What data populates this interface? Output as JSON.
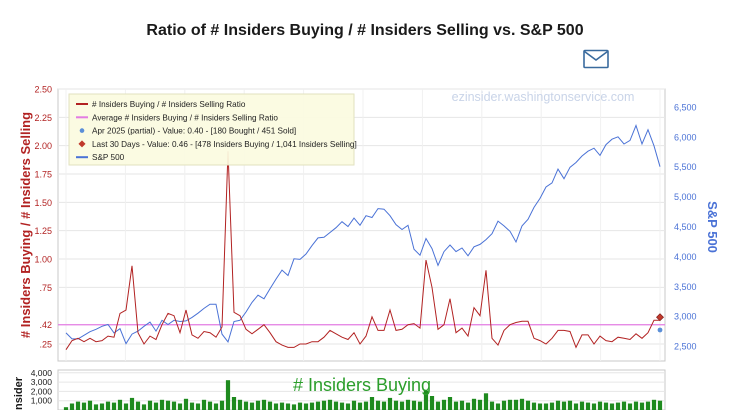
{
  "page": {
    "title": "Ratio of # Insiders Buying / # Insiders Selling vs. S&P 500"
  },
  "icons": {
    "mail": "envelope-icon"
  },
  "colors": {
    "ratio": "#b22222",
    "average": "#e37ce3",
    "sp500": "#4a72d6",
    "partial": "#5b8fd8",
    "last30": "#c0392b",
    "buying": "#1e8a1e",
    "grid": "#e6e6e6",
    "legend_bg": "#fbfbe0"
  },
  "chart_data": [
    {
      "type": "line",
      "title": "Ratio of # Insiders Buying / # Insiders Selling vs. S&P 500",
      "watermark": "ezinsider.washingtonservice.com",
      "ylabel": "# Insiders Buying / # Insiders Selling",
      "y2label": "S&P 500",
      "ylim": [
        0.1,
        2.5
      ],
      "y2lim": [
        2250,
        6800
      ],
      "yticks": [
        "2.50",
        "2.25",
        "2.00",
        "1.75",
        "1.50",
        "1.25",
        "1.00",
        ".75",
        ".42",
        ".25"
      ],
      "ytick_values": [
        2.5,
        2.25,
        2.0,
        1.75,
        1.5,
        1.25,
        1.0,
        0.75,
        0.42,
        0.25
      ],
      "y2ticks": [
        "6,500",
        "6,000",
        "5,500",
        "5,000",
        "4,500",
        "4,000",
        "3,500",
        "3,000",
        "2,500"
      ],
      "y2tick_values": [
        6500,
        6000,
        5500,
        5000,
        4500,
        4000,
        3500,
        3000,
        2500
      ],
      "legend": [
        {
          "label": "# Insiders Buying / # Insiders Selling Ratio",
          "kind": "line",
          "color": "#b22222"
        },
        {
          "label": "Average # Insiders Buying / # Insiders Selling Ratio",
          "kind": "line",
          "color": "#e37ce3"
        },
        {
          "label": "Apr 2025 (partial) - Value: 0.40 - [180 Bought / 451 Sold]",
          "kind": "dot",
          "color": "#5b8fd8"
        },
        {
          "label": "Last 30 Days - Value: 0.46 - [478 Insiders Buying / 1,041 Insiders Selling]",
          "kind": "diamond",
          "color": "#c0392b"
        },
        {
          "label": "S&P 500",
          "kind": "line",
          "color": "#4a72d6"
        }
      ],
      "average": 0.42,
      "partial_point": 0.4,
      "last30_point": 0.46,
      "series": [
        {
          "name": "# Insiders Buying / # Insiders Selling Ratio",
          "axis": "left",
          "values": [
            0.2,
            0.28,
            0.3,
            0.27,
            0.3,
            0.27,
            0.28,
            0.32,
            0.31,
            0.52,
            0.55,
            0.94,
            0.35,
            0.25,
            0.32,
            0.29,
            0.42,
            0.52,
            0.5,
            0.35,
            0.55,
            0.33,
            0.3,
            0.36,
            0.35,
            0.31,
            0.4,
            1.95,
            0.53,
            0.5,
            0.38,
            0.34,
            0.38,
            0.42,
            0.35,
            0.27,
            0.24,
            0.22,
            0.22,
            0.25,
            0.25,
            0.27,
            0.27,
            0.31,
            0.37,
            0.34,
            0.31,
            0.29,
            0.35,
            0.25,
            0.32,
            0.49,
            0.37,
            0.37,
            0.55,
            0.37,
            0.38,
            0.42,
            0.43,
            0.39,
            0.99,
            0.75,
            0.38,
            0.42,
            0.65,
            0.35,
            0.39,
            0.32,
            0.57,
            0.5,
            0.9,
            0.3,
            0.24,
            0.37,
            0.42,
            0.44,
            0.45,
            0.45,
            0.3,
            0.28,
            0.25,
            0.3,
            0.37,
            0.37,
            0.36,
            0.22,
            0.33,
            0.33,
            0.25,
            0.32,
            0.28,
            0.27,
            0.31,
            0.3,
            0.29,
            0.34,
            0.3,
            0.35,
            0.46,
            0.46
          ]
        },
        {
          "name": "S&P 500",
          "axis": "right",
          "values": [
            2720,
            2620,
            2620,
            2680,
            2740,
            2780,
            2830,
            2860,
            2720,
            2790,
            2540,
            2700,
            2750,
            2830,
            2900,
            2750,
            2930,
            2860,
            2930,
            2910,
            2920,
            2980,
            3050,
            3130,
            3200,
            3200,
            2700,
            2570,
            2910,
            2930,
            3070,
            3230,
            3350,
            3290,
            3460,
            3620,
            3770,
            3680,
            3960,
            3950,
            4040,
            4180,
            4310,
            4320,
            4400,
            4480,
            4580,
            4500,
            4640,
            4520,
            4680,
            4650,
            4800,
            4790,
            4680,
            4530,
            4450,
            4520,
            4120,
            4020,
            4300,
            4130,
            3850,
            4080,
            4190,
            4080,
            4140,
            4010,
            4160,
            4200,
            4280,
            4380,
            4590,
            4510,
            4420,
            4240,
            4510,
            4620,
            4820,
            4970,
            5160,
            5230,
            5460,
            5300,
            5490,
            5570,
            5680,
            5760,
            5810,
            5690,
            5870,
            5960,
            6000,
            5880,
            5940,
            6190,
            5880,
            6120,
            5850,
            5500
          ]
        },
        {
          "name": "# Insiders Buying",
          "axis": "lower",
          "values": [
            300,
            700,
            900,
            800,
            1000,
            600,
            700,
            900,
            800,
            1100,
            700,
            1300,
            900,
            600,
            1000,
            800,
            1100,
            1000,
            900,
            700,
            1200,
            800,
            700,
            1100,
            900,
            700,
            1000,
            3200,
            1400,
            1100,
            900,
            800,
            1000,
            1100,
            900,
            700,
            800,
            700,
            600,
            800,
            700,
            800,
            900,
            1000,
            1100,
            900,
            800,
            700,
            1000,
            800,
            900,
            1400,
            1000,
            900,
            1300,
            1000,
            900,
            1100,
            1000,
            900,
            2100,
            1500,
            900,
            1100,
            1400,
            900,
            1000,
            800,
            1200,
            1100,
            1800,
            900,
            700,
            1000,
            1100,
            1100,
            1200,
            1000,
            800,
            700,
            700,
            800,
            1000,
            900,
            1000,
            700,
            900,
            800,
            700,
            900,
            800,
            700,
            800,
            900,
            700,
            900,
            800,
            900,
            1100,
            1000
          ]
        }
      ]
    },
    {
      "type": "bar",
      "title": "# Insiders Buying",
      "ylabel": "Insider",
      "yticks": [
        "4,000",
        "3,000",
        "2,000",
        "1,000"
      ],
      "ytick_values": [
        4000,
        3000,
        2000,
        1000
      ],
      "ylim": [
        0,
        4300
      ]
    }
  ]
}
